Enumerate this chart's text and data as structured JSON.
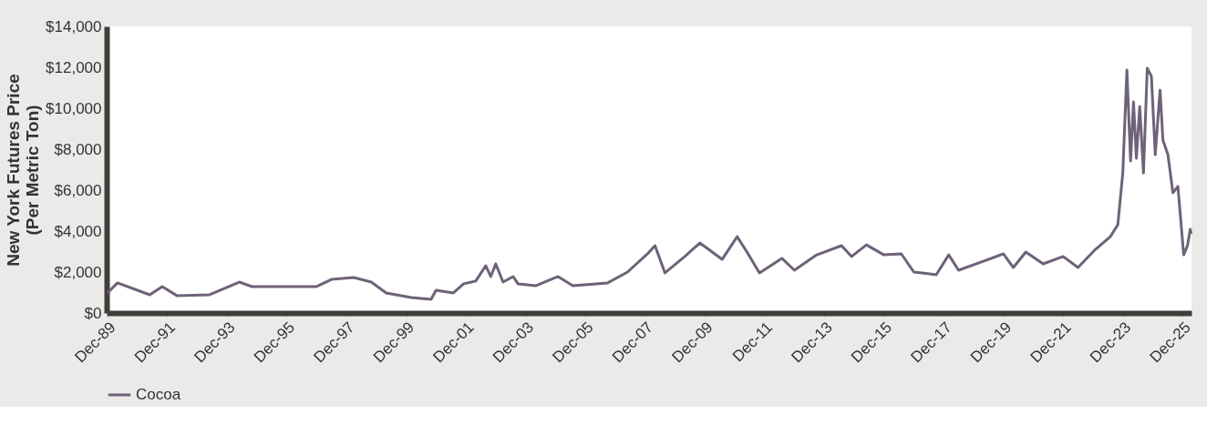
{
  "chart_data": {
    "type": "line",
    "ylabel": "New York Futures Price\n(Per Metric Ton)",
    "x": [
      "1989-12",
      "1990-04",
      "1991-05",
      "1991-10",
      "1992-04",
      "1993-05",
      "1994-05",
      "1994-10",
      "1996-01",
      "1996-12",
      "1997-06",
      "1998-03",
      "1998-10",
      "1999-04",
      "2000-02",
      "2000-10",
      "2000-12",
      "2001-07",
      "2001-11",
      "2002-04",
      "2002-08",
      "2002-10",
      "2002-12",
      "2003-03",
      "2003-07",
      "2003-09",
      "2004-04",
      "2005-01",
      "2005-07",
      "2006-09",
      "2007-05",
      "2008-01",
      "2008-04",
      "2008-08",
      "2009-04",
      "2009-10",
      "2010-07",
      "2011-01",
      "2011-05",
      "2011-10",
      "2012-07",
      "2012-12",
      "2013-09",
      "2014-07",
      "2014-11",
      "2015-05",
      "2015-12",
      "2016-07",
      "2016-12",
      "2017-09",
      "2018-02",
      "2018-06",
      "2019-04",
      "2019-12",
      "2020-04",
      "2020-09",
      "2021-04",
      "2021-12",
      "2022-06",
      "2023-01",
      "2023-07",
      "2023-10",
      "2023-12",
      "2024-01-20",
      "2024-03-05",
      "2024-04-10",
      "2024-05-15",
      "2024-06-25",
      "2024-08-10",
      "2024-09-25",
      "2024-11-15",
      "2025-01-01",
      "2025-03-01",
      "2025-04-05",
      "2025-06-05",
      "2025-08-05",
      "2025-10-05",
      "2025-12-15",
      "2026-01-30",
      "2026-03-05",
      "2026-03-15"
    ],
    "series": [
      {
        "name": "Cocoa",
        "color": "#6e6279",
        "values": [
          980,
          1470,
          890,
          1290,
          840,
          890,
          1510,
          1290,
          1290,
          1290,
          1640,
          1730,
          1510,
          980,
          760,
          670,
          1110,
          980,
          1420,
          1560,
          2310,
          1780,
          2400,
          1510,
          1780,
          1420,
          1330,
          1780,
          1330,
          1470,
          2000,
          2890,
          3290,
          1960,
          2760,
          3420,
          2620,
          3730,
          2980,
          1960,
          2670,
          2090,
          2840,
          3290,
          2760,
          3330,
          2840,
          2890,
          2000,
          1870,
          2840,
          2090,
          2530,
          2890,
          2220,
          2980,
          2400,
          2760,
          2220,
          3110,
          3730,
          4310,
          6840,
          11870,
          7420,
          10310,
          7560,
          10090,
          6840,
          11960,
          11560,
          7730,
          10890,
          8440,
          7730,
          5870,
          6180,
          2840,
          3290,
          4090,
          3870
        ]
      }
    ],
    "xlim": [
      "1989-11-20",
      "2026-03-20"
    ],
    "xticks": [
      {
        "value": "1989-12",
        "label": "Dec-89"
      },
      {
        "value": "1991-12",
        "label": "Dec-91"
      },
      {
        "value": "1993-12",
        "label": "Dec-93"
      },
      {
        "value": "1995-12",
        "label": "Dec-95"
      },
      {
        "value": "1997-12",
        "label": "Dec-97"
      },
      {
        "value": "1999-12",
        "label": "Dec-99"
      },
      {
        "value": "2001-12",
        "label": "Dec-01"
      },
      {
        "value": "2003-12",
        "label": "Dec-03"
      },
      {
        "value": "2005-12",
        "label": "Dec-05"
      },
      {
        "value": "2007-12",
        "label": "Dec-07"
      },
      {
        "value": "2009-12",
        "label": "Dec-09"
      },
      {
        "value": "2011-12",
        "label": "Dec-11"
      },
      {
        "value": "2013-12",
        "label": "Dec-13"
      },
      {
        "value": "2015-12",
        "label": "Dec-15"
      },
      {
        "value": "2017-12",
        "label": "Dec-17"
      },
      {
        "value": "2019-12",
        "label": "Dec-19"
      },
      {
        "value": "2021-12",
        "label": "Dec-21"
      },
      {
        "value": "2023-12",
        "label": "Dec-23"
      },
      {
        "value": "2025-12",
        "label": "Dec-25"
      }
    ],
    "ylim": [
      0,
      14000
    ],
    "yticks": [
      {
        "value": 0,
        "label": "$0"
      },
      {
        "value": 2000,
        "label": "$2,000"
      },
      {
        "value": 4000,
        "label": "$4,000"
      },
      {
        "value": 6000,
        "label": "$6,000"
      },
      {
        "value": 8000,
        "label": "$8,000"
      },
      {
        "value": 10000,
        "label": "$10,000"
      },
      {
        "value": 12000,
        "label": "$12,000"
      },
      {
        "value": 14000,
        "label": "$14,000"
      }
    ],
    "grid": false,
    "legend": "bottom",
    "marker": "none",
    "line_style": "solid"
  }
}
